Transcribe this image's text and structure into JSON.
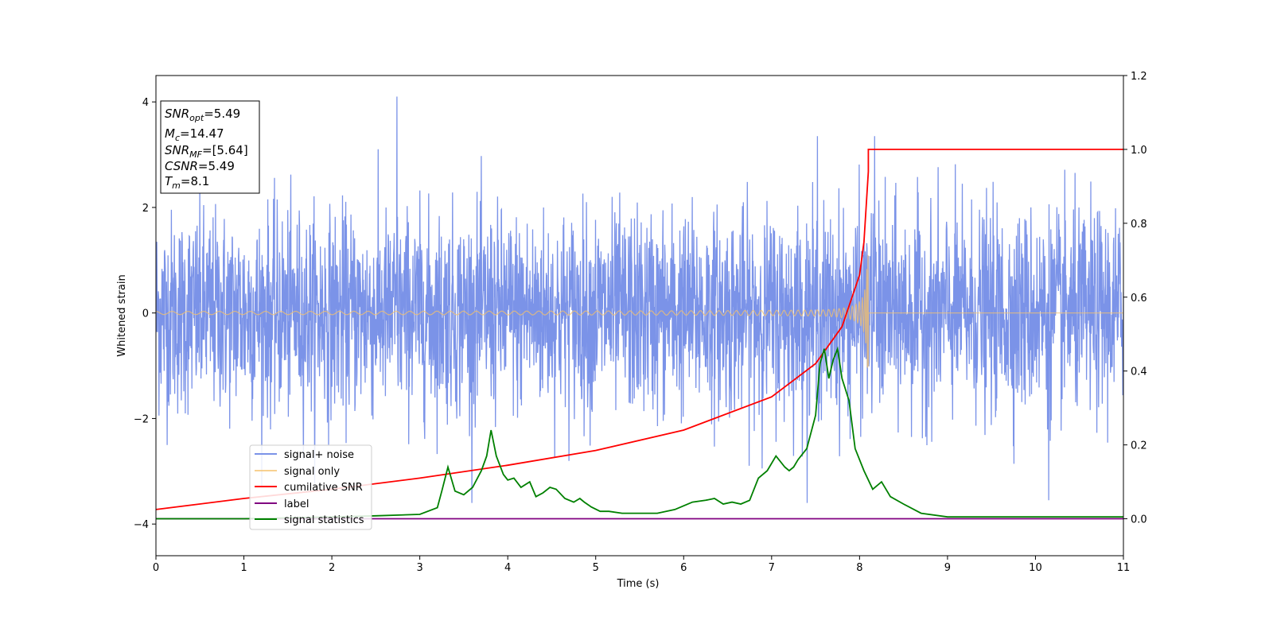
{
  "chart_data": {
    "type": "line",
    "xlabel": "Time (s)",
    "ylabel": "Whitened strain",
    "xlim": [
      0,
      11
    ],
    "ylim_left": [
      -4.6,
      4.5
    ],
    "ylim_right": [
      -0.1,
      1.2
    ],
    "x_ticks": [
      "0",
      "1",
      "2",
      "3",
      "4",
      "5",
      "6",
      "7",
      "8",
      "9",
      "10",
      "11"
    ],
    "y_ticks_left": [
      "−4",
      "−2",
      "0",
      "2",
      "4"
    ],
    "y_ticks_right": [
      "0.0",
      "0.2",
      "0.4",
      "0.6",
      "0.8",
      "1.0",
      "1.2"
    ],
    "grid": false,
    "legend_location": "lower-left",
    "info_box": {
      "lines": [
        {
          "main": "SNR",
          "sub": "opt",
          "value": "=5.49"
        },
        {
          "main": "M",
          "sub": "c",
          "value": "=14.47"
        },
        {
          "main": "SNR",
          "sub": "MF",
          "value": "=[5.64]"
        },
        {
          "main": "CSNR",
          "sub": "",
          "value": "=5.49"
        },
        {
          "main": "T",
          "sub": "m",
          "value": "=8.1"
        }
      ]
    },
    "series": [
      {
        "name": "signal+ noise",
        "axis": "left",
        "color": "#7b93e8",
        "kind": "noise",
        "noise_std": 0.95,
        "noise_range": [
          -3.6,
          4.1
        ],
        "notable_peaks": [
          [
            2.74,
            4.1
          ],
          [
            7.52,
            3.35
          ],
          [
            8.17,
            3.35
          ],
          [
            10.15,
            -3.55
          ]
        ]
      },
      {
        "name": "signal only",
        "axis": "left",
        "color": "#f5c26b",
        "kind": "chirp",
        "merger_time": 8.1,
        "peak_amplitude": 1.1,
        "amplitude_at_start": 0.03
      },
      {
        "name": "cumilative SNR",
        "axis": "right",
        "color": "#ff0000",
        "x": [
          0,
          1,
          2,
          3,
          4,
          5,
          6,
          7,
          7.5,
          7.8,
          8.0,
          8.05,
          8.1,
          8.1,
          11
        ],
        "y": [
          0.025,
          0.055,
          0.08,
          0.11,
          0.145,
          0.185,
          0.24,
          0.33,
          0.42,
          0.52,
          0.66,
          0.75,
          0.94,
          1.0,
          1.0
        ]
      },
      {
        "name": "label",
        "axis": "right",
        "color": "#800080",
        "x": [
          0,
          11
        ],
        "y": [
          0.0,
          0.0
        ]
      },
      {
        "name": "signal statistics",
        "axis": "right",
        "color": "#008000",
        "x": [
          0,
          1,
          2,
          2.5,
          3.0,
          3.2,
          3.25,
          3.32,
          3.4,
          3.5,
          3.6,
          3.7,
          3.76,
          3.81,
          3.87,
          3.95,
          4.0,
          4.07,
          4.15,
          4.25,
          4.32,
          4.4,
          4.48,
          4.55,
          4.65,
          4.75,
          4.82,
          4.87,
          4.95,
          5.05,
          5.15,
          5.3,
          5.5,
          5.7,
          5.9,
          6.1,
          6.25,
          6.35,
          6.45,
          6.55,
          6.65,
          6.75,
          6.85,
          6.95,
          7.05,
          7.15,
          7.2,
          7.25,
          7.3,
          7.4,
          7.5,
          7.55,
          7.6,
          7.65,
          7.7,
          7.75,
          7.8,
          7.88,
          7.95,
          8.05,
          8.15,
          8.25,
          8.35,
          8.5,
          8.7,
          9.0,
          9.5,
          10.0,
          10.5,
          11.0
        ],
        "y": [
          0.0,
          0.0,
          0.005,
          0.008,
          0.012,
          0.03,
          0.075,
          0.14,
          0.075,
          0.065,
          0.085,
          0.13,
          0.17,
          0.24,
          0.17,
          0.12,
          0.105,
          0.11,
          0.085,
          0.1,
          0.06,
          0.07,
          0.085,
          0.08,
          0.055,
          0.045,
          0.055,
          0.045,
          0.032,
          0.02,
          0.02,
          0.015,
          0.015,
          0.015,
          0.025,
          0.045,
          0.05,
          0.055,
          0.04,
          0.045,
          0.04,
          0.05,
          0.11,
          0.13,
          0.17,
          0.14,
          0.13,
          0.14,
          0.16,
          0.19,
          0.28,
          0.42,
          0.46,
          0.38,
          0.43,
          0.46,
          0.38,
          0.32,
          0.19,
          0.13,
          0.08,
          0.1,
          0.06,
          0.04,
          0.015,
          0.005,
          0.005,
          0.005,
          0.005,
          0.005
        ]
      }
    ]
  }
}
